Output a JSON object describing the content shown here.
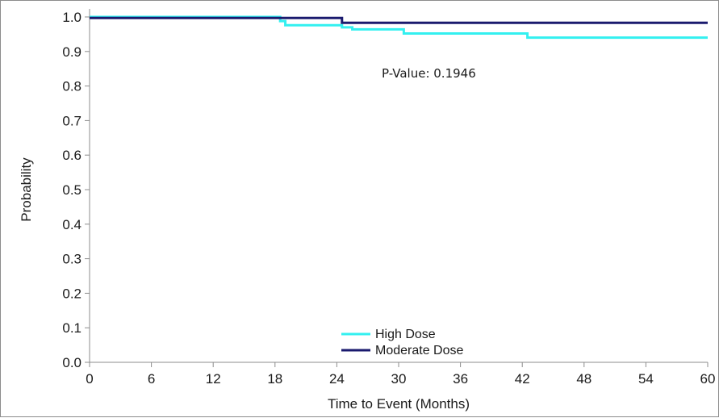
{
  "chart_data": {
    "type": "line",
    "step": true,
    "title": "",
    "xlabel": "Time to Event (Months)",
    "ylabel": "Probability",
    "xlim": [
      0,
      60
    ],
    "ylim": [
      0,
      1
    ],
    "x_ticks": [
      0,
      6,
      12,
      18,
      24,
      30,
      36,
      42,
      48,
      54,
      60
    ],
    "x_tick_labels": [
      "0",
      "6",
      "12",
      "18",
      "24",
      "30",
      "36",
      "42",
      "48",
      "54",
      "60"
    ],
    "y_ticks": [
      0,
      0.1,
      0.2,
      0.3,
      0.4,
      0.5,
      0.6,
      0.7,
      0.8,
      0.9,
      1.0
    ],
    "y_tick_labels": [
      "0.0",
      "0.1",
      "0.2",
      "0.3",
      "0.4",
      "0.5",
      "0.6",
      "0.7",
      "0.8",
      "0.9",
      "1.0"
    ],
    "grid": false,
    "legend_position": "bottom-center",
    "annotation": "P-Value: 0.1946",
    "series": [
      {
        "name": "High Dose",
        "color": "#33f0f0",
        "x": [
          0,
          18.5,
          19.0,
          24.5,
          25.5,
          30.5,
          42.5,
          60
        ],
        "y": [
          1.0,
          0.988,
          0.976,
          0.97,
          0.964,
          0.952,
          0.94,
          0.94
        ]
      },
      {
        "name": "Moderate Dose",
        "color": "#1a1a6e",
        "x": [
          0,
          24.5,
          60
        ],
        "y": [
          0.997,
          0.983,
          0.983
        ]
      }
    ]
  }
}
